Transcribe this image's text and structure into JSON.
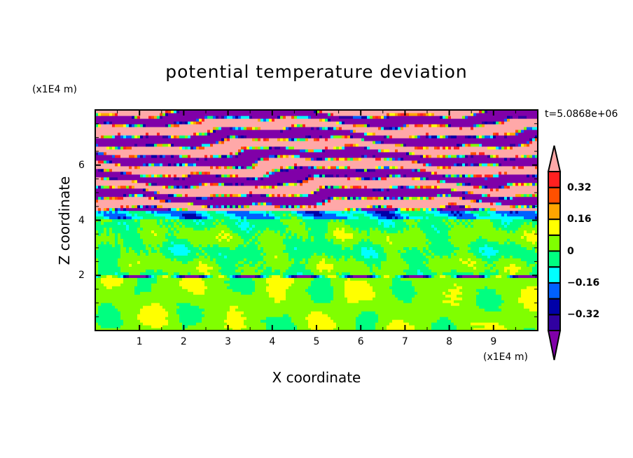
{
  "chart_data": {
    "type": "heatmap",
    "subtype": "filled-contour",
    "title": "potential temperature deviation",
    "xlabel": "X coordinate",
    "ylabel": "Z coordinate",
    "x_unit": "(x1E4 m)",
    "z_unit": "(x1E4 m)",
    "time_label": "t=5.0868e+06",
    "xlim": [
      0,
      10
    ],
    "ylim": [
      0,
      8
    ],
    "x_ticks": [
      1,
      2,
      3,
      4,
      5,
      6,
      7,
      8,
      9
    ],
    "y_ticks": [
      2,
      4,
      6
    ],
    "colorbar": {
      "levels": [
        -0.4,
        -0.32,
        -0.24,
        -0.16,
        -0.08,
        0,
        0.08,
        0.16,
        0.24,
        0.32,
        0.4
      ],
      "tick_labels": [
        "0.32",
        "0.16",
        "0",
        "−0.16",
        "−0.32"
      ],
      "tick_values": [
        0.32,
        0.16,
        0,
        -0.16,
        -0.32
      ],
      "colors_low_to_high": [
        "#3000a0",
        "#0000a8",
        "#0060ff",
        "#00ffff",
        "#00ff80",
        "#80ff00",
        "#ffff00",
        "#ffa500",
        "#ff5000",
        "#ff2020"
      ],
      "under_color": "#8000a8",
      "over_color": "#ffa8a8",
      "extend": "both"
    },
    "regions": [
      {
        "z_range": [
          0,
          2
        ],
        "description_values": "mostly 0 to 0.08 with -0.08 to 0 blobs"
      },
      {
        "z_range": [
          2,
          4
        ],
        "description_values": "-0.08 to 0.08 mixed"
      },
      {
        "z_range": [
          4,
          4.4
        ],
        "description_values": "-0.32 to -0.08 band"
      },
      {
        "z_range": [
          4.4,
          8
        ],
        "description_values": "alternating bands above 0.4 and below -0.4"
      }
    ]
  }
}
